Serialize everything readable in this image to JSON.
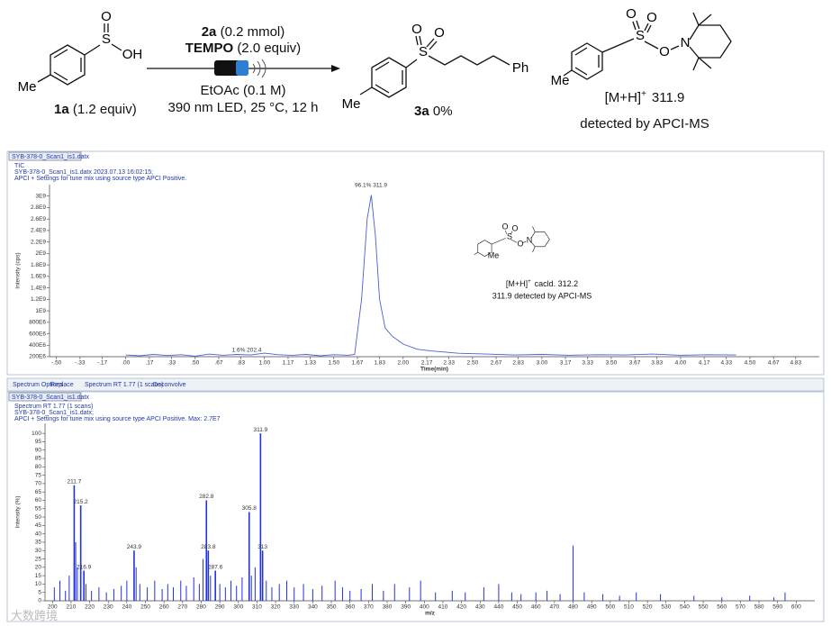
{
  "scheme": {
    "reactant": {
      "atoms": [
        "S",
        "O",
        "OH",
        "Me"
      ],
      "label": "1a",
      "equiv": "(1.2 equiv)"
    },
    "conditions": {
      "reagent": "2a",
      "reagent_amount": "(0.2 mmol)",
      "additive": "TEMPO",
      "additive_amount": "(2.0 equiv)",
      "solvent": "EtOAc (0.1 M)",
      "light": "390 nm LED, 25 °C, 12 h"
    },
    "product": {
      "atoms": [
        "S",
        "O",
        "O",
        "Ph",
        "Me"
      ],
      "label": "3a",
      "yield": "0%"
    },
    "adduct": {
      "atoms": [
        "S",
        "O",
        "O",
        "O",
        "N",
        "Me"
      ],
      "ion": "[M+H]",
      "charge": "+",
      "mass": "311.9",
      "note": "detected by APCI-MS"
    }
  },
  "tic_window": {
    "tab": "SYB-378-0_Scan1_is1.datx",
    "header": [
      "TIC",
      "SYB-378-0_Scan1_is1.datx 2023.07.13 16:02:15;",
      "APCI + Settings for tune mix using source type APCI Positive."
    ],
    "inset": {
      "atoms": [
        "S",
        "O",
        "O",
        "O",
        "N",
        "Me"
      ],
      "ion": "[M+H]",
      "charge": "+",
      "calcd": "cacld. 312.2",
      "found": "311.9 detected by APCI-MS"
    }
  },
  "spectrum_window": {
    "toolbar": [
      "Spectrum Options",
      "Replace",
      "Spectrum RT 1.77 (1 scans)",
      "Deconvolve"
    ],
    "tab": "SYB-378-0_Scan1_is1.datx",
    "header": [
      "Spectrum RT 1.77 (1 scans)",
      "SYB-378-0_Scan1_is1.datx;",
      "APCI + Settings for tune mix using source type APCI Positive.   Max: 2.7E7"
    ]
  },
  "watermark": "大数跨境",
  "chart_data": [
    {
      "type": "line",
      "x_label": "Time(min)",
      "y_label": "Intensity (cps)",
      "color": "#4a5fd6",
      "annotations": [
        "96.1%  311.9",
        "1.6%  202.4"
      ],
      "x": [
        0,
        0.1,
        0.2,
        0.3,
        0.4,
        0.5,
        0.6,
        0.7,
        0.8,
        0.9,
        1.0,
        1.1,
        1.2,
        1.3,
        1.4,
        1.5,
        1.6,
        1.65,
        1.7,
        1.74,
        1.77,
        1.8,
        1.83,
        1.87,
        1.92,
        2.0,
        2.1,
        2.2,
        2.4,
        2.6,
        2.8,
        3.0,
        3.2,
        3.4,
        3.6,
        3.8,
        4.0,
        4.2,
        4.4
      ],
      "values": [
        230000000,
        215000000,
        240000000,
        220000000,
        235000000,
        210000000,
        245000000,
        225000000,
        240000000,
        230000000,
        262000000,
        235000000,
        225000000,
        240000000,
        215000000,
        235000000,
        225000000,
        240000000,
        1200000000,
        2600000000,
        3020000000,
        2300000000,
        1200000000,
        700000000,
        560000000,
        420000000,
        330000000,
        300000000,
        260000000,
        245000000,
        230000000,
        240000000,
        225000000,
        235000000,
        230000000,
        245000000,
        225000000,
        235000000,
        230000000
      ],
      "xlim": [
        -0.55,
        5.0
      ],
      "ylim": [
        200000000,
        3200000000
      ],
      "xticks": [
        {
          "value": -0.5,
          "label": "-.50"
        },
        {
          "value": -0.33,
          "label": "-.33"
        },
        {
          "value": -0.17,
          "label": "-.17"
        },
        {
          "value": 0,
          "label": ".00"
        },
        {
          "value": 0.17,
          "label": ".17"
        },
        {
          "value": 0.33,
          "label": ".33"
        },
        {
          "value": 0.5,
          "label": ".50"
        },
        {
          "value": 0.67,
          "label": ".67"
        },
        {
          "value": 0.83,
          "label": ".83"
        },
        {
          "value": 1,
          "label": "1.00"
        },
        {
          "value": 1.17,
          "label": "1.17"
        },
        {
          "value": 1.33,
          "label": "1.33"
        },
        {
          "value": 1.5,
          "label": "1.50"
        },
        {
          "value": 1.67,
          "label": "1.67"
        },
        {
          "value": 1.83,
          "label": "1.83"
        },
        {
          "value": 2,
          "label": "2.00"
        },
        {
          "value": 2.17,
          "label": "2.17"
        },
        {
          "value": 2.33,
          "label": "2.33"
        },
        {
          "value": 2.5,
          "label": "2.50"
        },
        {
          "value": 2.67,
          "label": "2.67"
        },
        {
          "value": 2.83,
          "label": "2.83"
        },
        {
          "value": 3,
          "label": "3.00"
        },
        {
          "value": 3.17,
          "label": "3.17"
        },
        {
          "value": 3.33,
          "label": "3.33"
        },
        {
          "value": 3.5,
          "label": "3.50"
        },
        {
          "value": 3.67,
          "label": "3.67"
        },
        {
          "value": 3.83,
          "label": "3.83"
        },
        {
          "value": 4,
          "label": "4.00"
        },
        {
          "value": 4.17,
          "label": "4.17"
        },
        {
          "value": 4.33,
          "label": "4.33"
        },
        {
          "value": 4.5,
          "label": "4.50"
        },
        {
          "value": 4.67,
          "label": "4.67"
        },
        {
          "value": 4.83,
          "label": "4.83"
        }
      ],
      "yticks": [
        {
          "value": 200000000,
          "label": "200E6"
        },
        {
          "value": 400000000,
          "label": "400E6"
        },
        {
          "value": 600000000,
          "label": "600E6"
        },
        {
          "value": 800000000,
          "label": "800E6"
        },
        {
          "value": 1000000000,
          "label": "1E9"
        },
        {
          "value": 1200000000,
          "label": "1.2E9"
        },
        {
          "value": 1400000000,
          "label": "1.4E9"
        },
        {
          "value": 1600000000,
          "label": "1.6E9"
        },
        {
          "value": 1800000000,
          "label": "1.8E9"
        },
        {
          "value": 2000000000,
          "label": "2E9"
        },
        {
          "value": 2200000000,
          "label": "2.2E9"
        },
        {
          "value": 2400000000,
          "label": "2.4E9"
        },
        {
          "value": 2600000000,
          "label": "2.6E9"
        },
        {
          "value": 2800000000,
          "label": "2.8E9"
        },
        {
          "value": 3000000000,
          "label": "3E9"
        }
      ]
    },
    {
      "type": "stick",
      "x_label": "m/z",
      "y_label": "Intensity (%)",
      "color": "#2233dd",
      "x": [
        201,
        204,
        207,
        209,
        212.5,
        213.4,
        218,
        221,
        225,
        229,
        233,
        237,
        240,
        245,
        247,
        251,
        255,
        259,
        262,
        265,
        269,
        272,
        276,
        279,
        281,
        285,
        290,
        293,
        296,
        299,
        302,
        307,
        309,
        315,
        318,
        322,
        326,
        330,
        335,
        340,
        345,
        352,
        356,
        360,
        366,
        372,
        378,
        384,
        392,
        398,
        406,
        415,
        422,
        432,
        440,
        447,
        452,
        460,
        466,
        473,
        480,
        486,
        496,
        505,
        514,
        527,
        545,
        560,
        575,
        588,
        594
      ],
      "values": [
        8,
        12,
        6,
        15,
        35,
        20,
        10,
        6,
        8,
        5,
        7,
        9,
        12,
        20,
        10,
        8,
        12,
        7,
        10,
        8,
        12,
        9,
        14,
        10,
        25,
        15,
        10,
        8,
        12,
        9,
        14,
        15,
        20,
        12,
        8,
        10,
        12,
        8,
        10,
        7,
        9,
        12,
        8,
        6,
        7,
        10,
        6,
        10,
        8,
        12,
        5,
        6,
        5,
        8,
        10,
        5,
        4,
        5,
        6,
        4,
        33,
        5,
        4,
        3,
        5,
        4,
        3,
        2,
        3,
        2,
        5
      ],
      "labeled_peaks": {
        "x": [
          211.7,
          215.2,
          216.9,
          243.9,
          282.8,
          283.8,
          287.6,
          305.8,
          311.9,
          313.0
        ],
        "values": [
          69,
          57,
          18,
          30,
          60,
          30,
          18,
          53,
          100,
          30
        ]
      },
      "xlim": [
        196,
        610
      ],
      "ylim": [
        0,
        106
      ],
      "xticks": [
        200,
        210,
        220,
        230,
        240,
        250,
        260,
        270,
        280,
        290,
        300,
        310,
        320,
        330,
        340,
        350,
        360,
        370,
        380,
        390,
        400,
        410,
        420,
        430,
        440,
        450,
        460,
        470,
        480,
        490,
        500,
        510,
        520,
        530,
        540,
        550,
        560,
        570,
        580,
        590,
        600
      ],
      "yticks": [
        0,
        5,
        10,
        15,
        20,
        25,
        30,
        35,
        40,
        45,
        50,
        55,
        60,
        65,
        70,
        75,
        80,
        85,
        90,
        95,
        100
      ]
    }
  ]
}
